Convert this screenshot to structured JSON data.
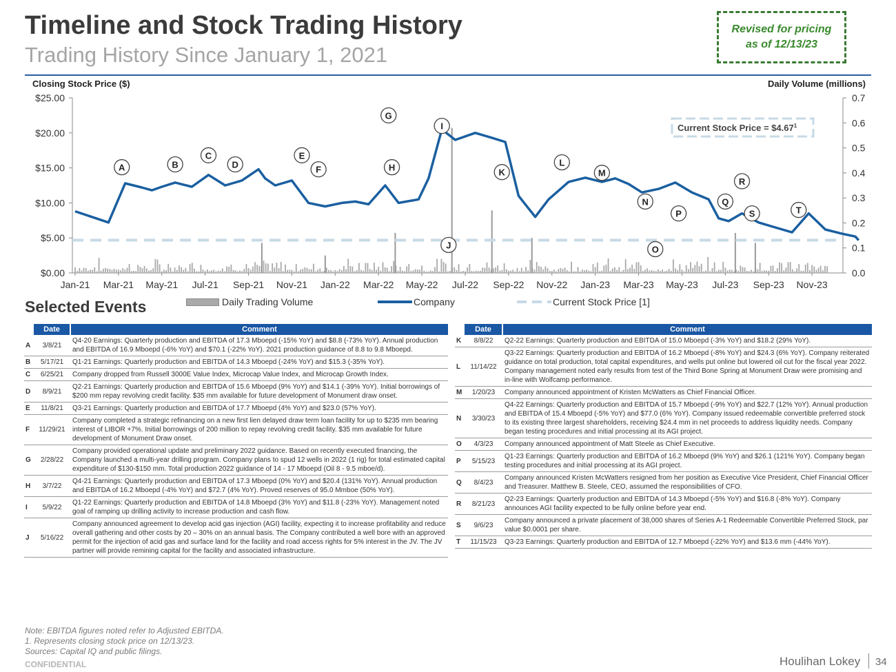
{
  "header": {
    "title": "Timeline and Stock Trading History",
    "subtitle": "Trading History Since January 1, 2021",
    "revised": "Revised for pricing as of 12/13/23"
  },
  "chart_data": {
    "type": "line",
    "left_axis_label": "Closing Stock Price ($)",
    "right_axis_label": "Daily Volume (millions)",
    "left_ticks": [
      "$25.00",
      "$20.00",
      "$15.00",
      "$10.00",
      "$5.00",
      "$0.00"
    ],
    "right_ticks": [
      "0.7",
      "0.6",
      "0.5",
      "0.4",
      "0.3",
      "0.2",
      "0.1",
      "0.0"
    ],
    "ylim": [
      0,
      25
    ],
    "y2lim": [
      0,
      0.7
    ],
    "x_ticks": [
      "Jan-21",
      "Mar-21",
      "May-21",
      "Jul-21",
      "Sep-21",
      "Nov-21",
      "Jan-22",
      "Mar-22",
      "May-22",
      "Jul-22",
      "Sep-22",
      "Nov-22",
      "Jan-23",
      "Mar-23",
      "May-23",
      "Jul-23",
      "Sep-23",
      "Nov-23"
    ],
    "current_price": 4.67,
    "current_price_label": "Current Stock Price = $4.67",
    "current_price_sup": "1",
    "price_series": {
      "name": "Company",
      "x": [
        0,
        0.5,
        1,
        1.5,
        2,
        2.3,
        2.6,
        3,
        3.5,
        4,
        4.5,
        5,
        5.5,
        5.7,
        6,
        6.5,
        7,
        7.5,
        8,
        8.4,
        8.8,
        9.3,
        9.7,
        10.3,
        10.6,
        11,
        11.4,
        12,
        12.5,
        12.9,
        13.3,
        13.8,
        14.2,
        14.8,
        15.3,
        15.8,
        16.2,
        16.6,
        17,
        17.5,
        18,
        18.5,
        19,
        19.3,
        19.6,
        20,
        20.5,
        21,
        21.5,
        22,
        22.5,
        23,
        23.4,
        23.5
      ],
      "y": [
        8.8,
        8.0,
        7.2,
        12.8,
        12.2,
        11.8,
        12.3,
        12.9,
        12.3,
        14.0,
        12.5,
        13.2,
        14.8,
        13.5,
        12.5,
        13.2,
        10.0,
        9.5,
        10.0,
        10.2,
        9.8,
        12.5,
        10.0,
        10.5,
        13.5,
        20.5,
        19.0,
        20.0,
        19.3,
        18.7,
        11.0,
        8.0,
        10.5,
        13.0,
        13.6,
        13.0,
        13.5,
        12.7,
        11.5,
        12.0,
        12.9,
        11.5,
        10.5,
        7.8,
        7.4,
        8.5,
        7.2,
        6.5,
        5.8,
        8.5,
        6.2,
        5.6,
        5.2,
        4.67
      ]
    },
    "volume_spikes": [
      {
        "x": 5.6,
        "v": 0.12
      },
      {
        "x": 7.5,
        "v": 0.07
      },
      {
        "x": 9.6,
        "v": 0.16
      },
      {
        "x": 11.3,
        "v": 0.58
      },
      {
        "x": 12.5,
        "v": 0.25
      },
      {
        "x": 13.7,
        "v": 0.14
      },
      {
        "x": 19.8,
        "v": 0.16
      },
      {
        "x": 20.4,
        "v": 0.12
      }
    ],
    "events": [
      {
        "label": "A",
        "x": 1.4,
        "y": 15.1
      },
      {
        "label": "B",
        "x": 3.0,
        "y": 15.5
      },
      {
        "label": "C",
        "x": 4.0,
        "y": 16.8
      },
      {
        "label": "D",
        "x": 4.8,
        "y": 15.5
      },
      {
        "label": "E",
        "x": 6.8,
        "y": 16.8
      },
      {
        "label": "F",
        "x": 7.3,
        "y": 14.8
      },
      {
        "label": "G",
        "x": 9.4,
        "y": 22.5
      },
      {
        "label": "H",
        "x": 9.5,
        "y": 15.1
      },
      {
        "label": "I",
        "x": 11.0,
        "y": 21.0
      },
      {
        "label": "J",
        "x": 11.2,
        "y": 4.0
      },
      {
        "label": "K",
        "x": 12.8,
        "y": 14.4
      },
      {
        "label": "L",
        "x": 14.6,
        "y": 15.8
      },
      {
        "label": "M",
        "x": 15.8,
        "y": 14.3
      },
      {
        "label": "N",
        "x": 17.1,
        "y": 10.2
      },
      {
        "label": "O",
        "x": 17.4,
        "y": 3.4
      },
      {
        "label": "P",
        "x": 18.1,
        "y": 8.5
      },
      {
        "label": "Q",
        "x": 19.5,
        "y": 10.2
      },
      {
        "label": "R",
        "x": 20.0,
        "y": 13.1
      },
      {
        "label": "S",
        "x": 20.3,
        "y": 8.5
      },
      {
        "label": "T",
        "x": 21.7,
        "y": 9.0
      }
    ]
  },
  "legend": {
    "volume": "Daily Trading Volume",
    "company": "Company",
    "current": "Current Stock Price [1]"
  },
  "events_heading": "Selected Events",
  "table": {
    "col_date": "Date",
    "col_comment": "Comment",
    "left": [
      {
        "letter": "A",
        "date": "3/8/21",
        "comment": "Q4-20 Earnings: Quarterly production and EBITDA of 17.3 Mboepd (-15% YoY) and $8.8 (-73% YoY). Annual production and EBITDA of 16.9 Mboepd (-6% YoY) and $70.1 (-22% YoY). 2021 production guidance of 8.8 to 9.8 Mboepd."
      },
      {
        "letter": "B",
        "date": "5/17/21",
        "comment": "Q1-21 Earnings: Quarterly production and EBITDA of 14.3 Mboepd (-24% YoY) and $15.3 (-35% YoY)."
      },
      {
        "letter": "C",
        "date": "6/25/21",
        "comment": "Company dropped from Russell 3000E Value Index, Microcap Value Index, and Microcap Growth Index."
      },
      {
        "letter": "D",
        "date": "8/9/21",
        "comment": "Q2-21 Earnings: Quarterly production and EBITDA of 15.6 Mboepd (9% YoY) and $14.1 (-39% YoY). Initial borrowings of $200 mm repay revolving credit facility. $35 mm available for future development of Monument draw onset."
      },
      {
        "letter": "E",
        "date": "11/8/21",
        "comment": "Q3-21 Earnings: Quarterly production and EBITDA of 17.7 Mboepd (4% YoY) and $23.0 (57% YoY)."
      },
      {
        "letter": "F",
        "date": "11/29/21",
        "comment": "Company completed a strategic refinancing on a new first lien delayed draw term loan facility for up to $235 mm bearing interest of LIBOR +7%. Initial borrowings of 200 million to repay revolving credit facility. $35 mm available for future development of Monument Draw onset."
      },
      {
        "letter": "G",
        "date": "2/28/22",
        "comment": "Company provided operational update and preliminary 2022 guidance. Based on recently executed financing, the Company launched a multi-year drilling program. Company plans to spud 12 wells in 2022 (1 rig) for total estimated capital expenditure of $130-$150 mm. Total production 2022 guidance of 14 - 17 Mboepd (Oil 8 - 9.5 mboe/d)."
      },
      {
        "letter": "H",
        "date": "3/7/22",
        "comment": "Q4-21 Earnings: Quarterly production and EBITDA of 17.3 Mboepd (0% YoY) and $20.4 (131% YoY). Annual production and EBITDA of 16.2 Mboepd (-4% YoY) and $72.7 (4% YoY). Proved reserves of 95.0 Mmboe (50% YoY)."
      },
      {
        "letter": "I",
        "date": "5/9/22",
        "comment": "Q1-22 Earnings: Quarterly production and EBITDA of 14.8 Mboepd (3% YoY) and $11.8 (-23% YoY). Management noted goal of ramping up drilling activity to increase production and cash flow."
      },
      {
        "letter": "J",
        "date": "5/16/22",
        "comment": "Company announced agreement to develop acid gas injection (AGI) facility, expecting it to increase profitability and reduce overall gathering and other costs by 20 – 30% on an annual basis. The Company contributed a well bore with an approved permit for the injection of acid gas and surface land for the facility and road access rights for 5% interest in the JV. The JV partner will provide remining capital for the facility and associated infrastructure."
      }
    ],
    "right": [
      {
        "letter": "K",
        "date": "8/8/22",
        "comment": "Q2-22 Earnings: Quarterly production and EBITDA of 15.0 Mboepd (-3% YoY) and $18.2 (29% YoY)."
      },
      {
        "letter": "L",
        "date": "11/14/22",
        "comment": "Q3-22 Earnings: Quarterly production and EBITDA of 16.2 Mboepd (-8% YoY) and $24.3 (6% YoY). Company reiterated guidance on total production, total capital expenditures, and wells put online but lowered oil cut for the fiscal year 2022. Company management noted early results from test of the Third Bone Spring at Monument Draw were promising and in-line with Wolfcamp performance."
      },
      {
        "letter": "M",
        "date": "1/20/23",
        "comment": "Company announced appointment of Kristen McWatters as Chief Financial Officer."
      },
      {
        "letter": "N",
        "date": "3/30/23",
        "comment": "Q4-22 Earnings: Quarterly production and EBITDA of 15.7 Mboepd (-9% YoY) and $22.7 (12% YoY). Annual production and EBITDA of 15.4 Mboepd (-5% YoY) and $77.0 (6% YoY). Company issued redeemable convertible preferred stock to its existing three largest shareholders, receiving $24.4 mm in net proceeds to address liquidity needs. Company began testing procedures and initial processing at its AGI project."
      },
      {
        "letter": "O",
        "date": "4/3/23",
        "comment": "Company announced appointment of Matt Steele as Chief Executive."
      },
      {
        "letter": "P",
        "date": "5/15/23",
        "comment": "Q1-23 Earnings: Quarterly production and EBITDA of 16.2 Mboepd (9% YoY) and $26.1 (121% YoY). Company began testing procedures and initial processing at its AGI project."
      },
      {
        "letter": "Q",
        "date": "8/4/23",
        "comment": "Company announced Kristen McWatters resigned from her position as Executive Vice President, Chief Financial Officer and Treasurer. Matthew B. Steele, CEO, assumed the responsibilities of CFO."
      },
      {
        "letter": "R",
        "date": "8/21/23",
        "comment": "Q2-23 Earnings: Quarterly production and EBITDA of 14.3 Mboepd (-5% YoY) and $16.8 (-8% YoY). Company announces AGI facility expected to be fully online before year end."
      },
      {
        "letter": "S",
        "date": "9/6/23",
        "comment": "Company announced a private placement of 38,000 shares of Series A-1 Redeemable Convertible Preferred Stock, par value $0.0001 per share."
      },
      {
        "letter": "T",
        "date": "11/15/23",
        "comment": "Q3-23 Earnings: Quarterly production and EBITDA of 12.7 Mboepd (-22% YoY) and $13.6 mm (-44% YoY)."
      }
    ]
  },
  "notes": {
    "line1": "Note: EBITDA figures noted refer to Adjusted EBITDA.",
    "line2": "1. Represents closing stock price on 12/13/23.",
    "line3": "Sources: Capital IQ and public filings."
  },
  "footer": {
    "confidential": "CONFIDENTIAL",
    "brand": "Houlihan Lokey",
    "page": "34"
  },
  "colors": {
    "company_line": "#1a5fa0",
    "current_dash": "#c7d9e6",
    "volume_bar": "#a9a9a9",
    "table_header": "#1a57a4",
    "revised_border": "#3a7a33"
  }
}
